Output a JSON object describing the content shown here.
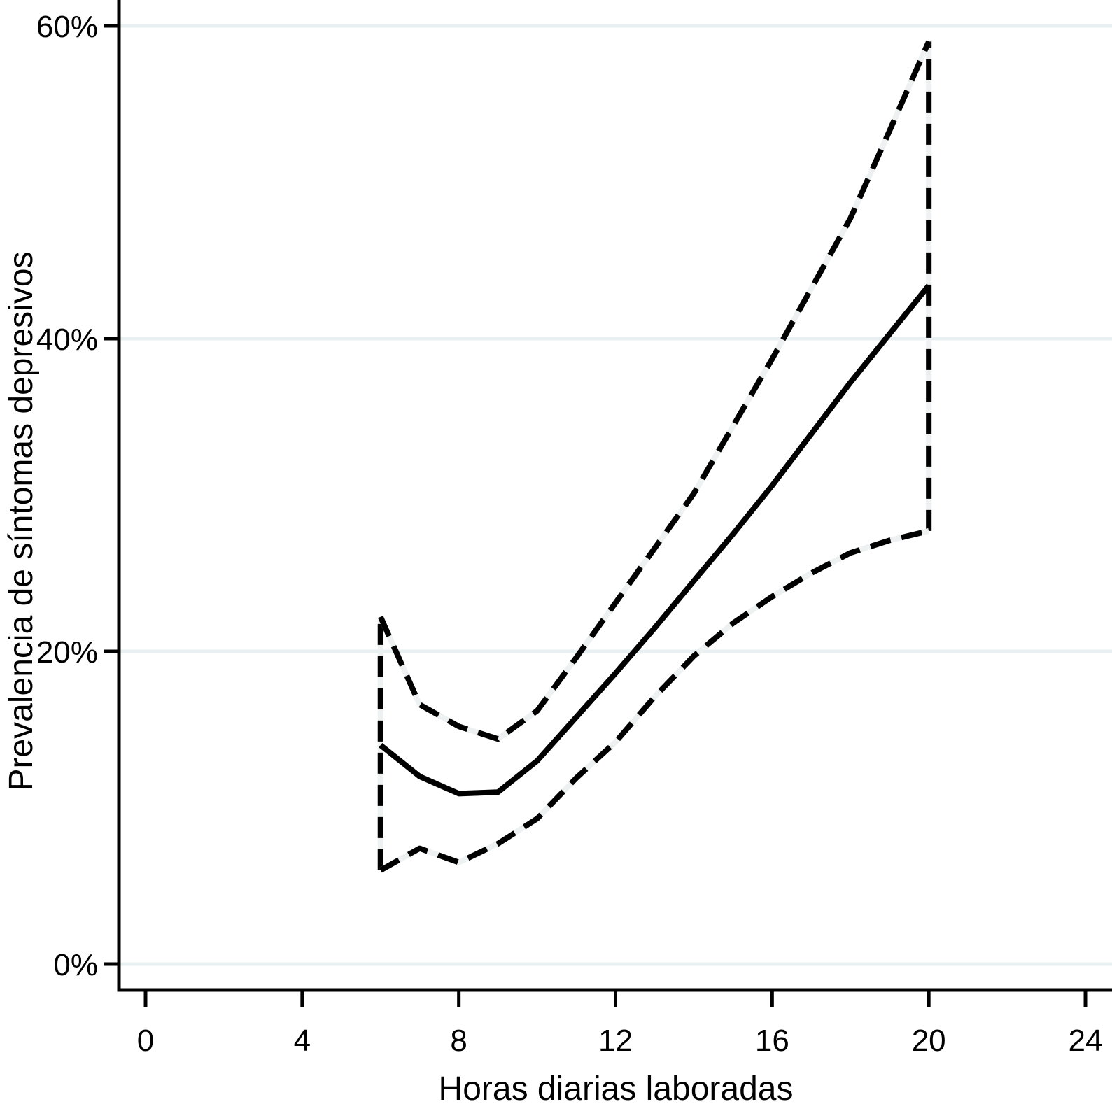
{
  "chart_data": {
    "type": "line",
    "title": "",
    "xlabel": "Horas diarias laboradas",
    "ylabel": "Prevalencia de síntomas depresivos",
    "xlim": [
      0,
      24
    ],
    "ylim": [
      0,
      60
    ],
    "grid": "horizontal-only",
    "legend": "none",
    "x_ticks": {
      "values": [
        0,
        4,
        8,
        12,
        16,
        20,
        24
      ],
      "labels": [
        "0",
        "4",
        "8",
        "12",
        "16",
        "20",
        "24"
      ]
    },
    "y_ticks": {
      "values": [
        0,
        20,
        40,
        60
      ],
      "labels": [
        "0%",
        "20%",
        "40%",
        "60%"
      ]
    },
    "x_hours": [
      6,
      7,
      8,
      9,
      10,
      11,
      12,
      13,
      14,
      15,
      16,
      17,
      18,
      19,
      20
    ],
    "series": [
      {
        "name": "upper-confidence-bound",
        "style": "dashed",
        "values": [
          22.2,
          16.6,
          15.2,
          14.4,
          16.2,
          19.6,
          23.1,
          26.6,
          30.1,
          34.4,
          38.7,
          43.2,
          47.7,
          53.3,
          59.0
        ]
      },
      {
        "name": "point-estimate",
        "style": "solid",
        "values": [
          14.0,
          12.0,
          10.9,
          11.0,
          13.0,
          15.8,
          18.6,
          21.5,
          24.5,
          27.5,
          30.6,
          33.9,
          37.2,
          40.3,
          43.4
        ]
      },
      {
        "name": "lower-confidence-bound",
        "style": "dashed",
        "values": [
          6.0,
          7.4,
          6.5,
          7.7,
          9.3,
          11.9,
          14.2,
          17.1,
          19.7,
          21.8,
          23.5,
          25.0,
          26.3,
          27.1,
          27.7
        ]
      }
    ],
    "ci_connectors": [
      {
        "x": 6,
        "from": 6.0,
        "to": 22.2,
        "style": "dashed"
      },
      {
        "x": 20,
        "from": 27.7,
        "to": 59.0,
        "style": "dashed"
      }
    ],
    "colors": {
      "line": "#000000",
      "gridline": "#e8f0f2",
      "dash_gap_backing": "#eef1f1",
      "background": "#ffffff",
      "text": "#000000"
    }
  }
}
